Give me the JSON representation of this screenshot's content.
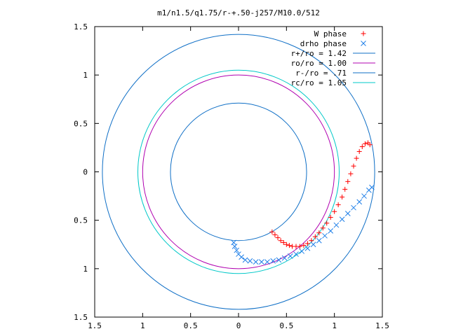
{
  "chart_data": {
    "type": "scatter",
    "title": "m1/n1.5/q1.75/r-+.50-j257/M10.0/512",
    "xlabel": "",
    "ylabel": "",
    "xlim": [
      -1.5,
      1.5
    ],
    "ylim": [
      -1.5,
      1.5
    ],
    "x_tick_labels": [
      "1.5",
      "1",
      "0.5",
      "0",
      "0.5",
      "1",
      "1.5"
    ],
    "x_tick_values": [
      -1.5,
      -1,
      -0.5,
      0,
      0.5,
      1,
      1.5
    ],
    "y_tick_labels": [
      "1.5",
      "1",
      "0.5",
      "0",
      "0.5",
      "1",
      "1.5"
    ],
    "y_tick_values": [
      1.5,
      1,
      0.5,
      0,
      -0.5,
      -1,
      -1.5
    ],
    "grid": false,
    "legend_position": "top-right",
    "circles": [
      {
        "label": "r+/ro = 1.42",
        "radius": 1.42,
        "color": "#0f6fc6"
      },
      {
        "label": "ro/ro = 1.00",
        "radius": 1.0,
        "color": "#b000b0"
      },
      {
        "label": "r-/ro = .71",
        "radius": 0.71,
        "color": "#0f6fc6"
      },
      {
        "label": "rc/ro = 1.05",
        "radius": 1.05,
        "color": "#00c8c8"
      }
    ],
    "series": [
      {
        "name": "W phase",
        "marker": "+",
        "color": "#ff0000",
        "points": [
          [
            0.35,
            -0.62
          ],
          [
            0.38,
            -0.65
          ],
          [
            0.41,
            -0.68
          ],
          [
            0.44,
            -0.71
          ],
          [
            0.47,
            -0.73
          ],
          [
            0.5,
            -0.75
          ],
          [
            0.53,
            -0.76
          ],
          [
            0.56,
            -0.77
          ],
          [
            0.6,
            -0.77
          ],
          [
            0.64,
            -0.77
          ],
          [
            0.68,
            -0.76
          ],
          [
            0.72,
            -0.74
          ],
          [
            0.76,
            -0.71
          ],
          [
            0.8,
            -0.67
          ],
          [
            0.84,
            -0.63
          ],
          [
            0.88,
            -0.58
          ],
          [
            0.92,
            -0.53
          ],
          [
            0.96,
            -0.47
          ],
          [
            1.0,
            -0.41
          ],
          [
            1.04,
            -0.34
          ],
          [
            1.08,
            -0.26
          ],
          [
            1.11,
            -0.18
          ],
          [
            1.14,
            -0.1
          ],
          [
            1.17,
            -0.02
          ],
          [
            1.2,
            0.06
          ],
          [
            1.23,
            0.14
          ],
          [
            1.26,
            0.21
          ],
          [
            1.29,
            0.26
          ],
          [
            1.32,
            0.29
          ],
          [
            1.35,
            0.3
          ],
          [
            1.37,
            0.28
          ]
        ]
      },
      {
        "name": "drho phase",
        "marker": "x",
        "color": "#1e7fe8",
        "points": [
          [
            -0.05,
            -0.73
          ],
          [
            -0.04,
            -0.77
          ],
          [
            -0.02,
            -0.81
          ],
          [
            0.0,
            -0.85
          ],
          [
            0.03,
            -0.88
          ],
          [
            0.07,
            -0.91
          ],
          [
            0.12,
            -0.92
          ],
          [
            0.18,
            -0.93
          ],
          [
            0.24,
            -0.93
          ],
          [
            0.3,
            -0.93
          ],
          [
            0.36,
            -0.92
          ],
          [
            0.42,
            -0.91
          ],
          [
            0.48,
            -0.89
          ],
          [
            0.54,
            -0.87
          ],
          [
            0.6,
            -0.85
          ],
          [
            0.66,
            -0.82
          ],
          [
            0.72,
            -0.79
          ],
          [
            0.78,
            -0.75
          ],
          [
            0.84,
            -0.71
          ],
          [
            0.9,
            -0.66
          ],
          [
            0.96,
            -0.61
          ],
          [
            1.02,
            -0.55
          ],
          [
            1.08,
            -0.49
          ],
          [
            1.14,
            -0.43
          ],
          [
            1.2,
            -0.37
          ],
          [
            1.26,
            -0.31
          ],
          [
            1.31,
            -0.25
          ],
          [
            1.36,
            -0.19
          ],
          [
            1.39,
            -0.16
          ]
        ]
      }
    ]
  }
}
